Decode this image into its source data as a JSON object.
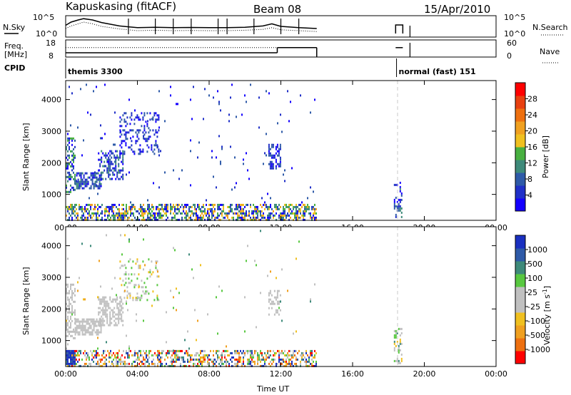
{
  "header": {
    "station": "Kapuskasing (fitACF)",
    "beam": "Beam 08",
    "date": "15/Apr/2010"
  },
  "chart_data": [
    {
      "type": "line",
      "panel": "noise",
      "left_label": "N.Sky",
      "right_label": "N.Search",
      "left_ticks": [
        "10^5",
        "10^0"
      ],
      "right_ticks": [
        "10^5",
        "10^0"
      ],
      "x_hours": [
        0.0,
        0.3,
        0.7,
        1.0,
        1.5,
        2.0,
        2.5,
        3.0,
        3.5,
        4.0,
        5.0,
        6.0,
        7.0,
        8.0,
        9.0,
        10.0,
        11.0,
        11.5,
        12.0,
        13.0,
        14.0
      ],
      "nsky_frac": [
        0.55,
        0.7,
        0.8,
        0.86,
        0.8,
        0.68,
        0.6,
        0.52,
        0.48,
        0.44,
        0.46,
        0.44,
        0.45,
        0.44,
        0.44,
        0.46,
        0.52,
        0.62,
        0.5,
        0.44,
        0.4
      ],
      "nsearch_frac": [
        0.4,
        0.52,
        0.62,
        0.7,
        0.62,
        0.5,
        0.44,
        0.38,
        0.34,
        0.3,
        0.32,
        0.3,
        0.31,
        0.3,
        0.3,
        0.32,
        0.36,
        0.44,
        0.34,
        0.3,
        0.26
      ],
      "late_segment_hours": [
        18.4,
        18.8
      ]
    },
    {
      "type": "line",
      "panel": "frequency",
      "left_label": "Freq.",
      "left_unit": "[MHz]",
      "left_ticks": [
        "18",
        "8"
      ],
      "right_label": "Nave",
      "right_ticks": [
        "60",
        "0"
      ],
      "freq_segments": [
        {
          "from": 0.0,
          "to": 11.8,
          "freq_mhz": 10.5
        },
        {
          "from": 11.8,
          "to": 14.0,
          "freq_mhz": 13.5
        },
        {
          "from": 18.4,
          "to": 18.8,
          "freq_mhz": 13.5
        }
      ],
      "nave_level": 0.55
    },
    {
      "type": "heatmap",
      "panel": "cpid",
      "label": "CPID",
      "modes": [
        {
          "start_hour": 0.0,
          "text": "themis 3300"
        },
        {
          "start_hour": 18.45,
          "text": "normal (fast) 151"
        }
      ]
    },
    {
      "type": "heatmap",
      "panel": "power",
      "xlabel": "",
      "ylabel": "Slant Range [km]",
      "x_ticks": [
        "00:00",
        "04:00",
        "08:00",
        "12:00",
        "16:00",
        "20:00",
        "00:00"
      ],
      "xlim_hours": [
        0,
        24
      ],
      "y_ticks": [
        1000,
        2000,
        3000,
        4000
      ],
      "ylim_km": [
        180,
        4600
      ],
      "colorbar_label": "Power [dB]",
      "colorbar_ticks": [
        "4",
        "8",
        "12",
        "16",
        "20",
        "24",
        "28"
      ],
      "colorbar_colors": [
        "#1400ff",
        "#2030c8",
        "#2e5aa8",
        "#3e8a7a",
        "#48b040",
        "#f0c020",
        "#f0a020",
        "#ee7010",
        "#e84010",
        "#ff0000"
      ],
      "scatter_regions": [
        {
          "h0": 0.0,
          "h1": 14.0,
          "r0": 200,
          "r1": 700,
          "density": 0.55,
          "level": [
            0.0,
            0.7
          ]
        },
        {
          "h0": 0.0,
          "h1": 0.5,
          "r0": 1100,
          "r1": 2800,
          "density": 0.45,
          "level": [
            0.0,
            0.5
          ]
        },
        {
          "h0": 0.5,
          "h1": 2.0,
          "r0": 1200,
          "r1": 1700,
          "density": 0.7,
          "level": [
            0.0,
            0.4
          ]
        },
        {
          "h0": 1.8,
          "h1": 3.2,
          "r0": 1500,
          "r1": 2400,
          "density": 0.5,
          "level": [
            0.0,
            0.4
          ]
        },
        {
          "h0": 3.0,
          "h1": 5.2,
          "r0": 2300,
          "r1": 3600,
          "density": 0.25,
          "level": [
            0.0,
            0.3
          ]
        },
        {
          "h0": 11.3,
          "h1": 12.0,
          "r0": 1800,
          "r1": 2600,
          "density": 0.4,
          "level": [
            0.0,
            0.3
          ]
        },
        {
          "h0": 18.3,
          "h1": 18.7,
          "r0": 300,
          "r1": 1400,
          "density": 0.4,
          "level": [
            0.0,
            0.4
          ]
        },
        {
          "h0": 0.0,
          "h1": 14.0,
          "r0": 700,
          "r1": 4500,
          "density": 0.012,
          "level": [
            0.0,
            0.3
          ]
        }
      ]
    },
    {
      "type": "heatmap",
      "panel": "velocity",
      "xlabel": "Time UT",
      "ylabel": "Slant Range [km]",
      "x_ticks": [
        "00:00",
        "04:00",
        "08:00",
        "12:00",
        "16:00",
        "20:00",
        "00:00"
      ],
      "xlim_hours": [
        0,
        24
      ],
      "y_ticks": [
        1000,
        2000,
        3000,
        4000
      ],
      "ylim_km": [
        180,
        4600
      ],
      "colorbar_label": "Velocity [m s^-1]",
      "colorbar_ticks": [
        "1000",
        "500",
        "100",
        "25",
        "-25",
        "-100",
        "-500",
        "-1000"
      ],
      "colorbar_colors": [
        "#1a30c0",
        "#2e5aa8",
        "#3e8a7a",
        "#58c840",
        "#c0c0c0",
        "#c0c0c0",
        "#f0c020",
        "#f0a020",
        "#ee7010",
        "#ff0000"
      ],
      "scatter_regions": [
        {
          "h0": 0.0,
          "h1": 14.0,
          "r0": 200,
          "r1": 700,
          "density": 0.45,
          "level": [
            0.0,
            1.0
          ]
        },
        {
          "h0": 0.0,
          "h1": 0.5,
          "r0": 250,
          "r1": 700,
          "density": 0.8,
          "level": [
            0.85,
            1.0
          ]
        },
        {
          "h0": 0.0,
          "h1": 0.5,
          "r0": 1100,
          "r1": 2800,
          "density": 0.4,
          "level": [
            0.4,
            0.55
          ]
        },
        {
          "h0": 0.5,
          "h1": 2.0,
          "r0": 1200,
          "r1": 1700,
          "density": 0.7,
          "level": [
            0.4,
            0.55
          ]
        },
        {
          "h0": 1.8,
          "h1": 3.2,
          "r0": 1500,
          "r1": 2400,
          "density": 0.5,
          "level": [
            0.4,
            0.55
          ]
        },
        {
          "h0": 3.0,
          "h1": 5.2,
          "r0": 2300,
          "r1": 3600,
          "density": 0.2,
          "level": [
            0.3,
            0.7
          ]
        },
        {
          "h0": 11.3,
          "h1": 12.0,
          "r0": 1800,
          "r1": 2600,
          "density": 0.35,
          "level": [
            0.4,
            0.6
          ]
        },
        {
          "h0": 18.3,
          "h1": 18.7,
          "r0": 300,
          "r1": 1400,
          "density": 0.35,
          "level": [
            0.3,
            0.8
          ]
        },
        {
          "h0": 0.0,
          "h1": 14.0,
          "r0": 700,
          "r1": 4500,
          "density": 0.01,
          "level": [
            0.2,
            0.8
          ]
        }
      ]
    }
  ]
}
